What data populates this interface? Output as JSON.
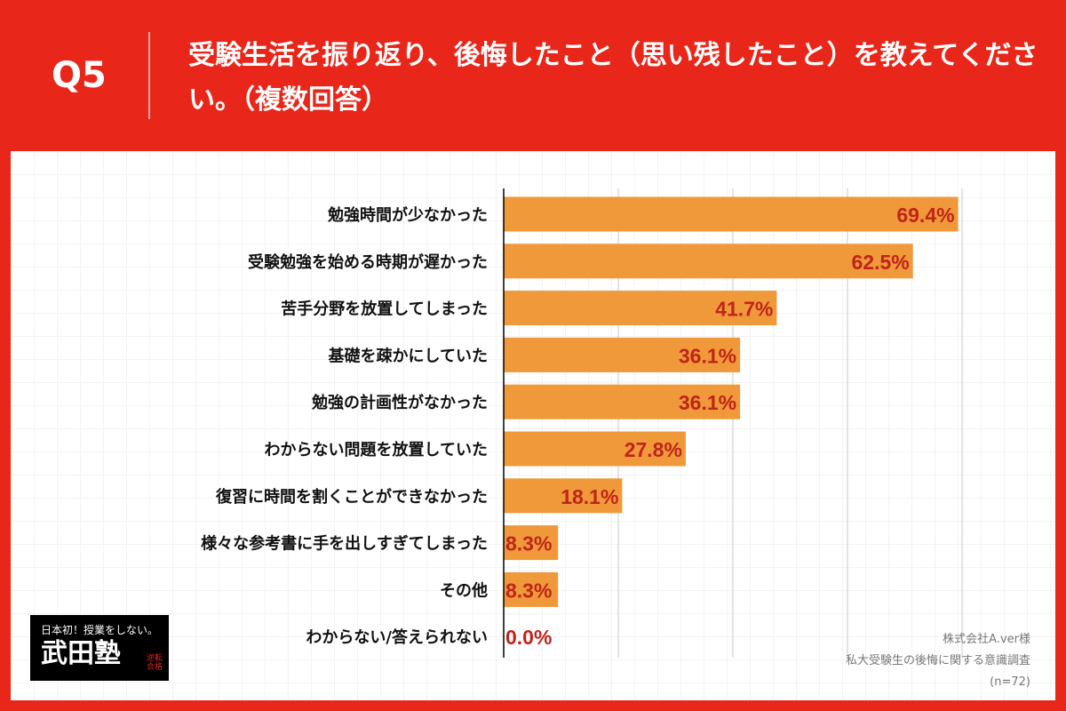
{
  "header": {
    "question_number": "Q5",
    "title": "受験生活を振り返り、後悔したこと（思い残したこと）を教えてください。（複数回答）"
  },
  "colors": {
    "background": "#e8261a",
    "bar": "#f0993a",
    "data_label": "#c0241a"
  },
  "chart_data": {
    "type": "bar",
    "orientation": "horizontal",
    "categories": [
      "勉強時間が少なかった",
      "受験勉強を始める時期が遅かった",
      "苦手分野を放置してしまった",
      "基礎を疎かにしていた",
      "勉強の計画性がなかった",
      "わからない問題を放置していた",
      "復習に時間を割くことができなかった",
      "様々な参考書に手を出しすぎてしまった",
      "その他",
      "わからない/答えられない"
    ],
    "values": [
      69.4,
      62.5,
      41.7,
      36.1,
      36.1,
      27.8,
      18.1,
      8.3,
      8.3,
      0.0
    ],
    "labels": [
      "69.4%",
      "62.5%",
      "41.7%",
      "36.1%",
      "36.1%",
      "27.8%",
      "18.1%",
      "8.3%",
      "8.3%",
      "0.0%"
    ],
    "unit": "%",
    "xlim": [
      0,
      70
    ],
    "grid": true
  },
  "logo": {
    "tagline": "日本初！授業をしない。",
    "name": "武田塾",
    "seal": "逆転合格"
  },
  "source": {
    "line1": "株式会社A.ver様",
    "line2": "私大受験生の後悔に関する意識調査",
    "line3": "(n=72)"
  }
}
